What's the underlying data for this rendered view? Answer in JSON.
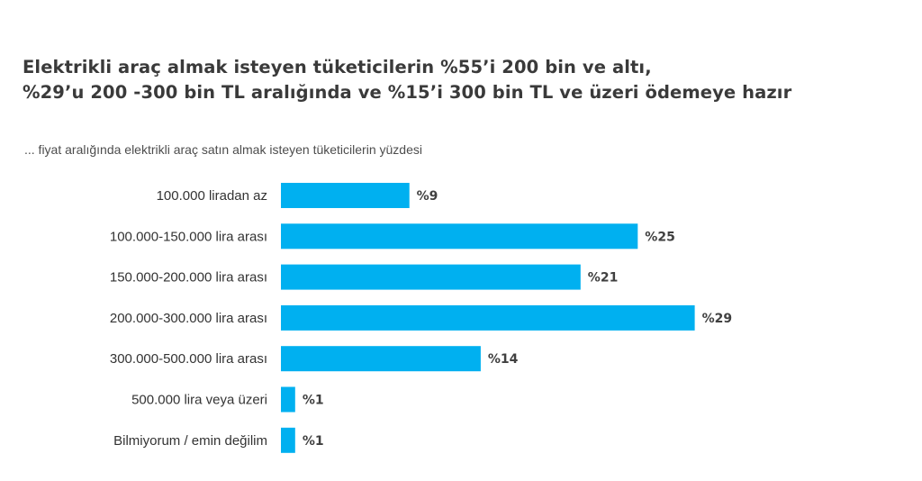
{
  "title": {
    "line1": "Elektrikli araç almak isteyen tüketicilerin %55’i 200 bin ve altı,",
    "line2": "%29’u 200 -300 bin TL aralığında ve %15’i  300 bin TL ve üzeri ödemeye hazır"
  },
  "subtitle": "... fiyat aralığında elektrikli araç satın almak isteyen tüketicilerin yüzdesi",
  "colors": {
    "bar": "#00b0f0",
    "text": "#333333",
    "title": "#3a3a3a"
  },
  "chart_data": {
    "type": "bar",
    "orientation": "horizontal",
    "categories": [
      "100.000 liradan az",
      "100.000-150.000 lira arası",
      "150.000-200.000 lira arası",
      "200.000-300.000 lira arası",
      "300.000-500.000 lira arası",
      "500.000 lira veya üzeri",
      "Bilmiyorum / emin değilim"
    ],
    "values": [
      9,
      25,
      21,
      29,
      14,
      1,
      1
    ],
    "data_labels": [
      "%9",
      "%25",
      "%21",
      "%29",
      "%14",
      "%1",
      "%1"
    ],
    "value_prefix": "%",
    "title": "",
    "xlabel": "",
    "ylabel": "",
    "xlim": [
      0,
      30
    ],
    "grid": false,
    "legend": "none"
  }
}
